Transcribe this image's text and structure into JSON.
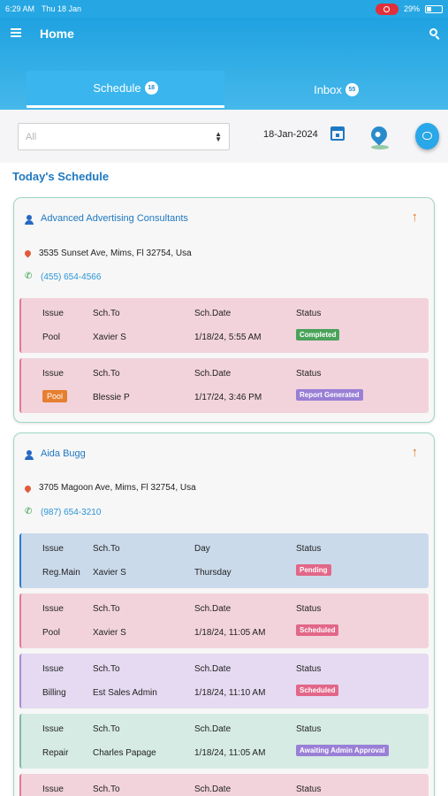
{
  "statusbar": {
    "time": "6:29 AM",
    "date": "Thu 18 Jan",
    "battery": "29%"
  },
  "header": {
    "title": "Home"
  },
  "tabs": [
    {
      "label": "Schedule",
      "count": "18"
    },
    {
      "label": "Inbox",
      "count": "55"
    }
  ],
  "filter": {
    "select_value": "All",
    "date": "18-Jan-2024"
  },
  "section_title": "Today's Schedule",
  "cards": [
    {
      "name": "Advanced Advertising Consultants",
      "address": "3535 Sunset Ave, Mims, Fl 32754, Usa",
      "phone": "(455) 654-4566",
      "items": [
        {
          "h1": "Issue",
          "h2": "Sch.To",
          "h3": "Sch.Date",
          "h4": "Status",
          "issue": "Pool",
          "to": "Xavier S",
          "date": "1/18/24, 5:55 AM",
          "status": "Completed"
        },
        {
          "h1": "Issue",
          "h2": "Sch.To",
          "h3": "Sch.Date",
          "h4": "Status",
          "issue": "Pool",
          "to": "Blessie P",
          "date": "1/17/24, 3:46 PM",
          "status": "Report Generated"
        }
      ]
    },
    {
      "name": "Aida Bugg",
      "address": "3705 Magoon Ave, Mims, Fl 32754, Usa",
      "phone": "(987) 654-3210",
      "items": [
        {
          "h1": "Issue",
          "h2": "Sch.To",
          "h3": "Day",
          "h4": "Status",
          "issue": "Reg.Main",
          "to": "Xavier S",
          "date": "Thursday",
          "status": "Pending"
        },
        {
          "h1": "Issue",
          "h2": "Sch.To",
          "h3": "Sch.Date",
          "h4": "Status",
          "issue": "Pool",
          "to": "Xavier S",
          "date": "1/18/24, 11:05 AM",
          "status": "Scheduled"
        },
        {
          "h1": "Issue",
          "h2": "Sch.To",
          "h3": "Sch.Date",
          "h4": "Status",
          "issue": "Billing",
          "to": "Est Sales Admin",
          "date": "1/18/24, 11:10 AM",
          "status": "Scheduled"
        },
        {
          "h1": "Issue",
          "h2": "Sch.To",
          "h3": "Sch.Date",
          "h4": "Status",
          "issue": "Repair",
          "to": "Charles Papage",
          "date": "1/18/24, 11:05 AM",
          "status": "Awaiting Admin Approval"
        },
        {
          "h1": "Issue",
          "h2": "Sch.To",
          "h3": "Sch.Date",
          "h4": "Status"
        }
      ]
    }
  ],
  "colors": {
    "primary": "#1fa2e1",
    "accent_orange": "#e07b2a",
    "link_blue": "#1f78c1"
  }
}
